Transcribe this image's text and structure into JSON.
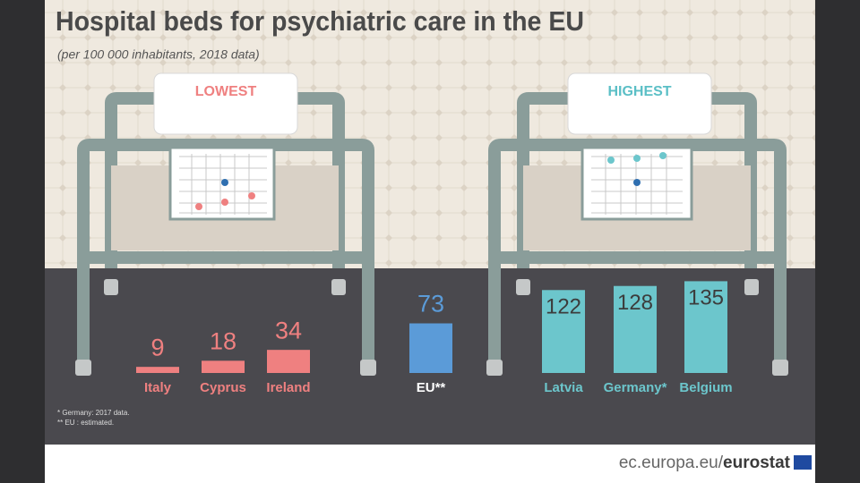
{
  "chart_data": {
    "type": "bar",
    "title": "Hospital beds for psychiatric care in the EU",
    "subtitle": "(per 100 000 inhabitants, 2018 data)",
    "group_labels": [
      "LOWEST",
      "HIGHEST"
    ],
    "categories": [
      "Italy",
      "Cyprus",
      "Ireland",
      "EU**",
      "Latvia",
      "Germany*",
      "Belgium"
    ],
    "values": [
      9,
      18,
      34,
      73,
      122,
      128,
      135
    ],
    "colors": [
      "#ef8080",
      "#ef8080",
      "#ef8080",
      "#5b9bd8",
      "#6cc6cc",
      "#6cc6cc",
      "#6cc6cc"
    ],
    "footnotes": [
      "*  Germany: 2017 data.",
      "** EU : estimated."
    ],
    "source": [
      "ec.europa.eu/",
      "eurostat"
    ]
  }
}
